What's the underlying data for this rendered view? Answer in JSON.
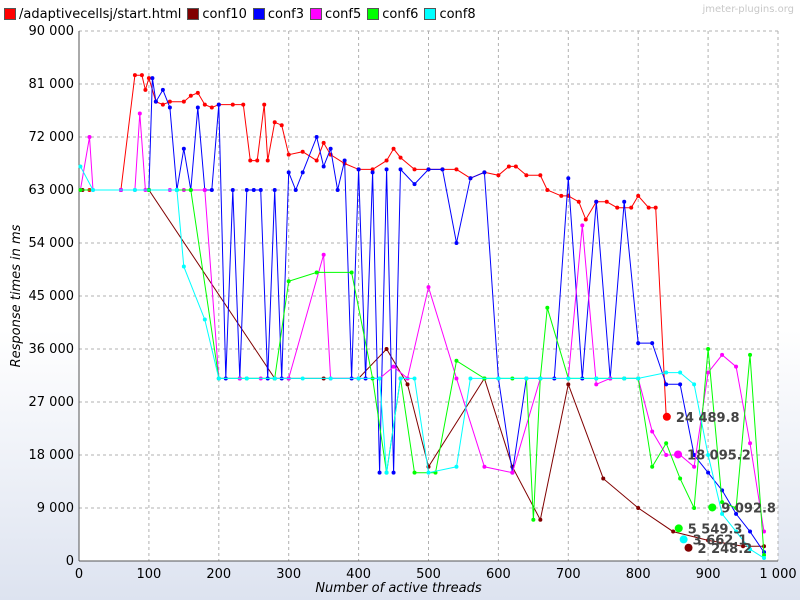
{
  "watermark": "jmeter-plugins.org",
  "legend": [
    {
      "name": "/adaptivecellsj/start.html",
      "color": "#ff0000"
    },
    {
      "name": "conf10",
      "color": "#800000"
    },
    {
      "name": "conf3",
      "color": "#0000ff"
    },
    {
      "name": "conf5",
      "color": "#ff00ff"
    },
    {
      "name": "conf6",
      "color": "#00ff00"
    },
    {
      "name": "conf8",
      "color": "#00ffff"
    }
  ],
  "chart_data": {
    "type": "line",
    "xlabel": "Number of active threads",
    "ylabel": "Response times in ms",
    "xlim": [
      0,
      1000
    ],
    "ylim": [
      0,
      90000
    ],
    "x_ticks": [
      "0",
      "100",
      "200",
      "300",
      "400",
      "500",
      "600",
      "700",
      "800",
      "900",
      "1 000"
    ],
    "y_ticks": [
      "0",
      "9 000",
      "18 000",
      "27 000",
      "36 000",
      "45 000",
      "54 000",
      "63 000",
      "72 000",
      "81 000",
      "90 000"
    ],
    "grid": true,
    "legend_position": "top",
    "series": [
      {
        "name": "/adaptivecellsj/start.html",
        "color": "#ff0000",
        "points": [
          [
            2,
            63000
          ],
          [
            15,
            63000
          ],
          [
            60,
            63000
          ],
          [
            80,
            82500
          ],
          [
            90,
            82500
          ],
          [
            95,
            80000
          ],
          [
            100,
            82000
          ],
          [
            110,
            78000
          ],
          [
            120,
            77500
          ],
          [
            130,
            78000
          ],
          [
            150,
            78000
          ],
          [
            160,
            79000
          ],
          [
            170,
            79500
          ],
          [
            180,
            77500
          ],
          [
            190,
            77000
          ],
          [
            200,
            77500
          ],
          [
            220,
            77500
          ],
          [
            235,
            77500
          ],
          [
            245,
            68000
          ],
          [
            255,
            68000
          ],
          [
            265,
            77500
          ],
          [
            270,
            68000
          ],
          [
            280,
            74500
          ],
          [
            290,
            74000
          ],
          [
            300,
            69000
          ],
          [
            320,
            69500
          ],
          [
            340,
            68000
          ],
          [
            350,
            71000
          ],
          [
            360,
            69000
          ],
          [
            380,
            67500
          ],
          [
            400,
            66500
          ],
          [
            420,
            66500
          ],
          [
            440,
            68000
          ],
          [
            450,
            70000
          ],
          [
            460,
            68500
          ],
          [
            480,
            66500
          ],
          [
            500,
            66500
          ],
          [
            520,
            66500
          ],
          [
            540,
            66500
          ],
          [
            560,
            65000
          ],
          [
            580,
            66000
          ],
          [
            600,
            65500
          ],
          [
            615,
            67000
          ],
          [
            625,
            67000
          ],
          [
            640,
            65500
          ],
          [
            660,
            65500
          ],
          [
            670,
            63000
          ],
          [
            690,
            62000
          ],
          [
            700,
            62000
          ],
          [
            715,
            61000
          ],
          [
            725,
            58000
          ],
          [
            740,
            61000
          ],
          [
            755,
            61000
          ],
          [
            770,
            60000
          ],
          [
            790,
            60000
          ],
          [
            800,
            62000
          ],
          [
            815,
            60000
          ],
          [
            825,
            60000
          ],
          [
            840,
            24500
          ]
        ]
      },
      {
        "name": "conf10",
        "color": "#800000",
        "points": [
          [
            5,
            63000
          ],
          [
            100,
            63000
          ],
          [
            280,
            31000
          ],
          [
            300,
            31000
          ],
          [
            350,
            31000
          ],
          [
            400,
            31000
          ],
          [
            440,
            36000
          ],
          [
            470,
            30000
          ],
          [
            500,
            16000
          ],
          [
            580,
            31000
          ],
          [
            620,
            16000
          ],
          [
            660,
            7000
          ],
          [
            700,
            30000
          ],
          [
            750,
            14000
          ],
          [
            800,
            9000
          ],
          [
            850,
            5000
          ],
          [
            900,
            3500
          ],
          [
            950,
            2500
          ],
          [
            980,
            2500
          ]
        ]
      },
      {
        "name": "conf3",
        "color": "#0000ff",
        "points": [
          [
            2,
            63000
          ],
          [
            60,
            63000
          ],
          [
            100,
            63000
          ],
          [
            105,
            82000
          ],
          [
            110,
            78000
          ],
          [
            120,
            80000
          ],
          [
            130,
            77000
          ],
          [
            140,
            63000
          ],
          [
            150,
            70000
          ],
          [
            160,
            63000
          ],
          [
            170,
            77000
          ],
          [
            180,
            63000
          ],
          [
            190,
            63000
          ],
          [
            200,
            77500
          ],
          [
            210,
            31000
          ],
          [
            220,
            63000
          ],
          [
            230,
            31000
          ],
          [
            240,
            63000
          ],
          [
            250,
            63000
          ],
          [
            260,
            63000
          ],
          [
            270,
            31000
          ],
          [
            280,
            63000
          ],
          [
            290,
            31000
          ],
          [
            300,
            66000
          ],
          [
            310,
            63000
          ],
          [
            320,
            66000
          ],
          [
            340,
            72000
          ],
          [
            350,
            67000
          ],
          [
            360,
            70000
          ],
          [
            370,
            63000
          ],
          [
            380,
            68000
          ],
          [
            390,
            31000
          ],
          [
            400,
            66500
          ],
          [
            410,
            31000
          ],
          [
            420,
            66000
          ],
          [
            430,
            15000
          ],
          [
            440,
            66500
          ],
          [
            450,
            15000
          ],
          [
            460,
            66500
          ],
          [
            480,
            64000
          ],
          [
            500,
            66500
          ],
          [
            520,
            66500
          ],
          [
            540,
            54000
          ],
          [
            560,
            65000
          ],
          [
            580,
            66000
          ],
          [
            600,
            31000
          ],
          [
            620,
            15000
          ],
          [
            640,
            31000
          ],
          [
            660,
            31000
          ],
          [
            680,
            31000
          ],
          [
            700,
            65000
          ],
          [
            720,
            31000
          ],
          [
            740,
            61000
          ],
          [
            760,
            31000
          ],
          [
            780,
            61000
          ],
          [
            800,
            37000
          ],
          [
            820,
            37000
          ],
          [
            840,
            30000
          ],
          [
            860,
            30000
          ],
          [
            880,
            18000
          ],
          [
            900,
            15000
          ],
          [
            920,
            12000
          ],
          [
            940,
            8000
          ],
          [
            960,
            5000
          ],
          [
            980,
            1500
          ]
        ]
      },
      {
        "name": "conf5",
        "color": "#ff00ff",
        "points": [
          [
            2,
            63000
          ],
          [
            15,
            72000
          ],
          [
            20,
            63000
          ],
          [
            60,
            63000
          ],
          [
            80,
            63000
          ],
          [
            87,
            76000
          ],
          [
            95,
            63000
          ],
          [
            130,
            63000
          ],
          [
            150,
            63000
          ],
          [
            180,
            63000
          ],
          [
            200,
            31000
          ],
          [
            230,
            31000
          ],
          [
            260,
            31000
          ],
          [
            300,
            31000
          ],
          [
            350,
            52000
          ],
          [
            360,
            31000
          ],
          [
            400,
            31000
          ],
          [
            430,
            31000
          ],
          [
            450,
            33000
          ],
          [
            470,
            31000
          ],
          [
            500,
            46500
          ],
          [
            540,
            31000
          ],
          [
            580,
            16000
          ],
          [
            620,
            15000
          ],
          [
            660,
            31000
          ],
          [
            700,
            31000
          ],
          [
            720,
            57000
          ],
          [
            740,
            30000
          ],
          [
            760,
            31000
          ],
          [
            780,
            31000
          ],
          [
            800,
            31000
          ],
          [
            820,
            22000
          ],
          [
            840,
            18000
          ],
          [
            860,
            18000
          ],
          [
            880,
            16000
          ],
          [
            900,
            32000
          ],
          [
            920,
            35000
          ],
          [
            940,
            33000
          ],
          [
            960,
            20000
          ],
          [
            980,
            5000
          ]
        ]
      },
      {
        "name": "conf6",
        "color": "#00ff00",
        "points": [
          [
            2,
            63000
          ],
          [
            100,
            63000
          ],
          [
            140,
            63000
          ],
          [
            160,
            63000
          ],
          [
            200,
            31000
          ],
          [
            240,
            31000
          ],
          [
            280,
            31000
          ],
          [
            300,
            47500
          ],
          [
            340,
            49000
          ],
          [
            390,
            49000
          ],
          [
            420,
            31000
          ],
          [
            440,
            15000
          ],
          [
            460,
            31000
          ],
          [
            480,
            15000
          ],
          [
            510,
            15000
          ],
          [
            540,
            34000
          ],
          [
            580,
            31000
          ],
          [
            620,
            31000
          ],
          [
            640,
            31000
          ],
          [
            650,
            7000
          ],
          [
            660,
            31000
          ],
          [
            670,
            43000
          ],
          [
            700,
            31000
          ],
          [
            740,
            31000
          ],
          [
            780,
            31000
          ],
          [
            800,
            31000
          ],
          [
            820,
            16000
          ],
          [
            840,
            20000
          ],
          [
            860,
            14000
          ],
          [
            880,
            9000
          ],
          [
            900,
            36000
          ],
          [
            920,
            10000
          ],
          [
            940,
            9000
          ],
          [
            960,
            35000
          ],
          [
            980,
            1000
          ]
        ]
      },
      {
        "name": "conf8",
        "color": "#00ffff",
        "points": [
          [
            2,
            67000
          ],
          [
            20,
            63000
          ],
          [
            80,
            63000
          ],
          [
            140,
            63000
          ],
          [
            150,
            50000
          ],
          [
            180,
            41000
          ],
          [
            200,
            31000
          ],
          [
            240,
            31000
          ],
          [
            280,
            31000
          ],
          [
            320,
            31000
          ],
          [
            360,
            31000
          ],
          [
            400,
            31000
          ],
          [
            430,
            31000
          ],
          [
            440,
            15000
          ],
          [
            460,
            31000
          ],
          [
            480,
            31000
          ],
          [
            500,
            15000
          ],
          [
            540,
            16000
          ],
          [
            560,
            31000
          ],
          [
            600,
            31000
          ],
          [
            640,
            31000
          ],
          [
            660,
            31000
          ],
          [
            700,
            31000
          ],
          [
            740,
            31000
          ],
          [
            780,
            31000
          ],
          [
            800,
            31000
          ],
          [
            840,
            32000
          ],
          [
            860,
            32000
          ],
          [
            880,
            30000
          ],
          [
            900,
            18000
          ],
          [
            920,
            8000
          ],
          [
            940,
            5000
          ],
          [
            960,
            2000
          ],
          [
            980,
            500
          ]
        ]
      }
    ],
    "annotations": [
      {
        "label": "24 489.8",
        "x": 841,
        "y": 24490,
        "color": "#ff0000"
      },
      {
        "label": "18 095.2",
        "x": 857,
        "y": 18095,
        "color": "#ff00ff"
      },
      {
        "label": "9 092.8",
        "x": 906,
        "y": 9093,
        "color": "#00ff00"
      },
      {
        "label": "5 549.3",
        "x": 858,
        "y": 5549,
        "color": "#00ff00"
      },
      {
        "label": "3 662.1",
        "x": 865,
        "y": 3662,
        "color": "#00ffff"
      },
      {
        "label": "2 248.2",
        "x": 872,
        "y": 2248,
        "color": "#800000"
      }
    ]
  }
}
